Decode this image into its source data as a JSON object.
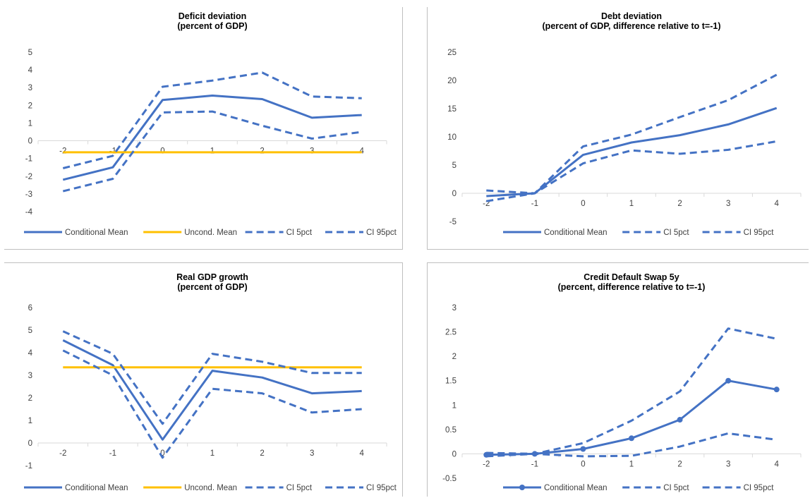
{
  "colors": {
    "series_blue": "#4472c4",
    "uncond_yellow": "#ffc000",
    "frame": "#bfbfbf",
    "axis_zero": "#d9d9d9",
    "text": "#404040"
  },
  "chart_data": [
    {
      "type": "line",
      "title_lines": [
        "Deficit deviation",
        "(percent of GDP)"
      ],
      "x": [
        -2,
        -1,
        0,
        1,
        2,
        3,
        4
      ],
      "ylim": [
        -4,
        5
      ],
      "yticks": [
        -4,
        -3,
        -2,
        -1,
        0,
        1,
        2,
        3,
        4,
        5
      ],
      "grid": false,
      "legend_position": "bottom",
      "series": [
        {
          "name": "Conditional Mean",
          "style": "solid",
          "color": "#4472c4",
          "markers": false,
          "values": [
            -2.2,
            -1.5,
            2.3,
            2.55,
            2.35,
            1.3,
            1.45
          ]
        },
        {
          "name": "Uncond. Mean",
          "style": "solid",
          "color": "#ffc000",
          "markers": false,
          "values": [
            -0.65,
            -0.65,
            -0.65,
            -0.65,
            -0.65,
            -0.65,
            -0.65
          ]
        },
        {
          "name": "CI 5pct",
          "style": "dashed",
          "color": "#4472c4",
          "markers": false,
          "values": [
            -2.85,
            -2.15,
            1.6,
            1.65,
            0.85,
            0.12,
            0.5
          ]
        },
        {
          "name": "CI 95pct",
          "style": "dashed",
          "color": "#4472c4",
          "markers": false,
          "values": [
            -1.55,
            -0.85,
            3.05,
            3.4,
            3.85,
            2.5,
            2.4
          ]
        }
      ]
    },
    {
      "type": "line",
      "title_lines": [
        "Debt deviation",
        "(percent of GDP, difference relative to t=-1)"
      ],
      "x": [
        -2,
        -1,
        0,
        1,
        2,
        3,
        4
      ],
      "ylim": [
        -5,
        25
      ],
      "yticks": [
        -5,
        0,
        5,
        10,
        15,
        20,
        25
      ],
      "grid": false,
      "legend_position": "bottom",
      "series": [
        {
          "name": "Conditional Mean",
          "style": "solid",
          "color": "#4472c4",
          "markers": false,
          "values": [
            -0.5,
            0,
            6.8,
            9.0,
            10.3,
            12.2,
            15.1
          ]
        },
        {
          "name": "CI 5pct",
          "style": "dashed",
          "color": "#4472c4",
          "markers": false,
          "values": [
            -1.4,
            0,
            5.3,
            7.6,
            7.0,
            7.7,
            9.2
          ]
        },
        {
          "name": "CI 95pct",
          "style": "dashed",
          "color": "#4472c4",
          "markers": false,
          "values": [
            0.5,
            0,
            8.3,
            10.4,
            13.5,
            16.5,
            21.0
          ]
        }
      ]
    },
    {
      "type": "line",
      "title_lines": [
        "Real GDP growth",
        "(percent of GDP)"
      ],
      "x": [
        -2,
        -1,
        0,
        1,
        2,
        3,
        4
      ],
      "ylim": [
        -1,
        6
      ],
      "yticks": [
        -1,
        0,
        1,
        2,
        3,
        4,
        5,
        6
      ],
      "grid": false,
      "legend_position": "bottom",
      "series": [
        {
          "name": "Conditional Mean",
          "style": "solid",
          "color": "#4472c4",
          "markers": false,
          "values": [
            4.55,
            3.45,
            0.15,
            3.2,
            2.9,
            2.2,
            2.3
          ]
        },
        {
          "name": "Uncond. Mean",
          "style": "solid",
          "color": "#ffc000",
          "markers": false,
          "values": [
            3.35,
            3.35,
            3.35,
            3.35,
            3.35,
            3.35,
            3.35
          ]
        },
        {
          "name": "CI 5pct",
          "style": "dashed",
          "color": "#4472c4",
          "markers": false,
          "values": [
            4.1,
            3.0,
            -0.65,
            2.4,
            2.2,
            1.35,
            1.5
          ]
        },
        {
          "name": "CI 95pct",
          "style": "dashed",
          "color": "#4472c4",
          "markers": false,
          "values": [
            4.95,
            3.95,
            0.85,
            3.95,
            3.6,
            3.1,
            3.1
          ]
        }
      ]
    },
    {
      "type": "line",
      "title_lines": [
        "Credit Default Swap 5y",
        "(percent, difference relative to t=-1)"
      ],
      "x": [
        -2,
        -1,
        0,
        1,
        2,
        3,
        4
      ],
      "ylim": [
        -0.5,
        3
      ],
      "yticks": [
        -0.5,
        0,
        0.5,
        1,
        1.5,
        2,
        2.5,
        3
      ],
      "grid": false,
      "legend_position": "bottom",
      "series": [
        {
          "name": "Conditional Mean",
          "style": "solid",
          "color": "#4472c4",
          "markers": true,
          "values": [
            -0.02,
            0,
            0.1,
            0.32,
            0.7,
            1.5,
            1.32
          ]
        },
        {
          "name": "CI 5pct",
          "style": "dashed",
          "color": "#4472c4",
          "markers": false,
          "values": [
            -0.05,
            0,
            -0.05,
            -0.04,
            0.15,
            0.42,
            0.29
          ]
        },
        {
          "name": "CI 95pct",
          "style": "dashed",
          "color": "#4472c4",
          "markers": false,
          "values": [
            0.02,
            0,
            0.22,
            0.68,
            1.28,
            2.57,
            2.36
          ]
        }
      ]
    }
  ]
}
